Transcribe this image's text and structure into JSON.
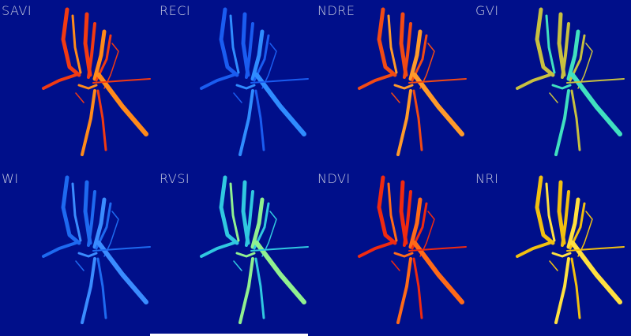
{
  "panels": [
    {
      "label": "SAVI",
      "color": "#f23a12",
      "accent": "#ff8a1a"
    },
    {
      "label": "RECI",
      "color": "#1a5cf0",
      "accent": "#2f8cff"
    },
    {
      "label": "NDRE",
      "color": "#f24a14",
      "accent": "#ff9a2a"
    },
    {
      "label": "GVI",
      "color": "#c8c040",
      "accent": "#40e0c0"
    },
    {
      "label": "WI",
      "color": "#1e6af0",
      "accent": "#3a8cff"
    },
    {
      "label": "RVSI",
      "color": "#30c8e0",
      "accent": "#90f090"
    },
    {
      "label": "NDVI",
      "color": "#f02a10",
      "accent": "#ff6a18"
    },
    {
      "label": "NRI",
      "color": "#f2c010",
      "accent": "#ffe040"
    }
  ],
  "background_color": "#000f8a"
}
